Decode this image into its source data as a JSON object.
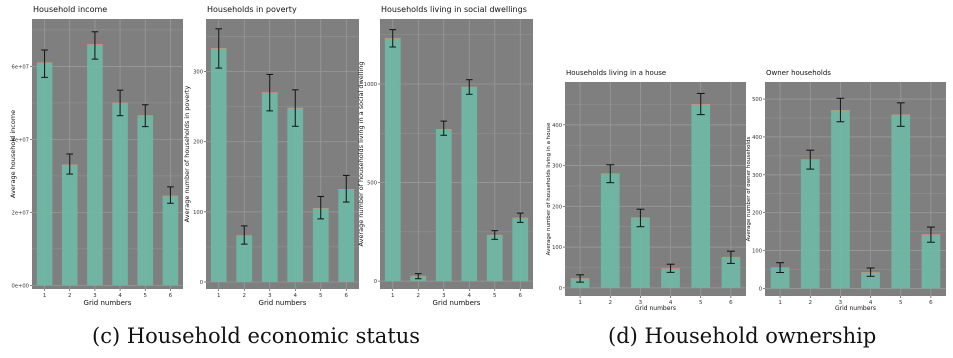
{
  "colors": {
    "panel": "#7f7f7f",
    "grid": "#999999",
    "bar": "#6fb8a6",
    "error": "#111111"
  },
  "captions": {
    "left": "(c) Household economic status",
    "right": "(d) Household ownership"
  },
  "chart_data": [
    {
      "type": "bar",
      "title": "Household income",
      "xlabel": "Grid numbers",
      "ylabel": "Average household income",
      "categories": [
        "1",
        "2",
        "3",
        "4",
        "5",
        "6"
      ],
      "values": [
        61000000,
        33000000,
        66000000,
        50000000,
        46500000,
        24500000
      ],
      "error_low": [
        57000000,
        30500000,
        62000000,
        46500000,
        43500000,
        22500000
      ],
      "error_high": [
        64500000,
        36000000,
        69500000,
        53500000,
        49500000,
        27000000
      ],
      "ylim": [
        -1000000,
        73000000
      ],
      "yticks": [
        0,
        20000000,
        40000000,
        60000000
      ],
      "ytick_labels": [
        "0e+00",
        "2e+07",
        "4e+07",
        "6e+07"
      ],
      "grid": true
    },
    {
      "type": "bar",
      "title": "Households in poverty",
      "xlabel": "Grid numbers",
      "ylabel": "Average number of households in poverty",
      "categories": [
        "1",
        "2",
        "3",
        "4",
        "5",
        "6"
      ],
      "values": [
        333,
        66,
        270,
        248,
        105,
        132
      ],
      "error_low": [
        305,
        54,
        244,
        222,
        90,
        114
      ],
      "error_high": [
        361,
        80,
        296,
        274,
        122,
        152
      ],
      "ylim": [
        -10,
        375
      ],
      "yticks": [
        0,
        100,
        200,
        300
      ],
      "ytick_labels": [
        "0",
        "100",
        "200",
        "300"
      ],
      "grid": true
    },
    {
      "type": "bar",
      "title": "Households living in social dwellings",
      "xlabel": "Grid numbers",
      "ylabel": "Average number of households living in a social dwelling",
      "categories": [
        "1",
        "2",
        "3",
        "4",
        "5",
        "6"
      ],
      "values": [
        1232,
        25,
        770,
        985,
        233,
        320
      ],
      "error_low": [
        1188,
        12,
        740,
        948,
        212,
        298
      ],
      "error_high": [
        1276,
        38,
        812,
        1022,
        256,
        345
      ],
      "ylim": [
        -40,
        1330
      ],
      "yticks": [
        0,
        500,
        1000
      ],
      "ytick_labels": [
        "0",
        "500",
        "1000"
      ],
      "grid": true
    },
    {
      "type": "bar",
      "title": "Households living in a house",
      "xlabel": "Grid numbers",
      "ylabel": "Average number of households living in a house",
      "categories": [
        "1",
        "2",
        "3",
        "4",
        "5",
        "6"
      ],
      "values": [
        23,
        280,
        172,
        47,
        450,
        75
      ],
      "error_low": [
        14,
        258,
        150,
        38,
        425,
        60
      ],
      "error_high": [
        32,
        302,
        193,
        58,
        477,
        90
      ],
      "ylim": [
        -20,
        505
      ],
      "yticks": [
        0,
        100,
        200,
        300,
        400
      ],
      "ytick_labels": [
        "0",
        "100",
        "200",
        "300",
        "400"
      ],
      "grid": true
    },
    {
      "type": "bar",
      "title": "Owner households",
      "xlabel": "Grid numbers",
      "ylabel": "Average number of owner households",
      "categories": [
        "1",
        "2",
        "3",
        "4",
        "5",
        "6"
      ],
      "values": [
        55,
        340,
        470,
        42,
        458,
        142
      ],
      "error_low": [
        42,
        315,
        440,
        32,
        428,
        122
      ],
      "error_high": [
        68,
        365,
        502,
        54,
        490,
        162
      ],
      "ylim": [
        -20,
        545
      ],
      "yticks": [
        0,
        100,
        200,
        300,
        400,
        500
      ],
      "ytick_labels": [
        "0",
        "100",
        "200",
        "300",
        "400",
        "500"
      ],
      "grid": true
    }
  ]
}
